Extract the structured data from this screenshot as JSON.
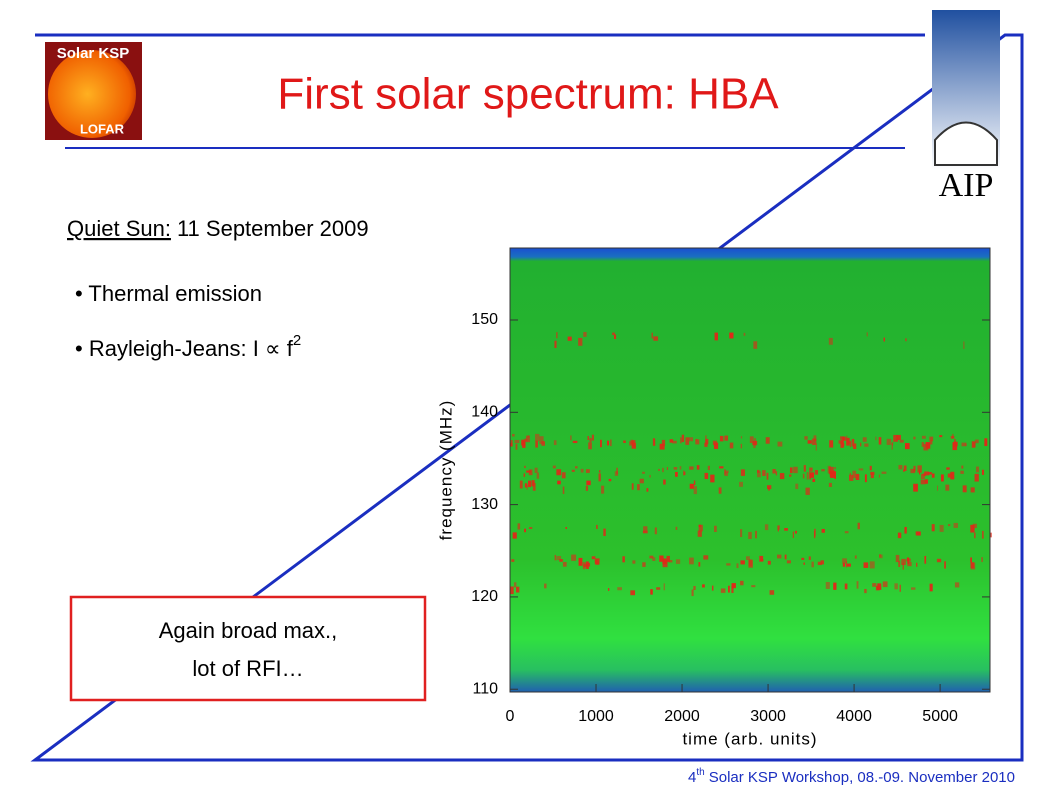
{
  "header": {
    "logo_top": "Solar KSP",
    "logo_bottom": "LOFAR",
    "title": "First solar spectrum: HBA",
    "institute": "AIP"
  },
  "subtitle": {
    "label": "Quiet Sun:",
    "date": "11 September 2009"
  },
  "bullets": [
    {
      "text": "Thermal emission"
    },
    {
      "text": "Rayleigh-Jeans: I ∝ f",
      "sup": "2"
    }
  ],
  "callout": [
    "Again broad max.,",
    "lot of RFI…"
  ],
  "footer": {
    "number": "4",
    "suffix": "th",
    "text": "Solar KSP Workshop, 08.-09. November 2010"
  },
  "chart_data": {
    "type": "heatmap",
    "xlabel": "time (arb. units)",
    "ylabel": "frequency (MHz)",
    "xlim": [
      0,
      5580
    ],
    "xticks": [
      0,
      1000,
      2000,
      3000,
      4000,
      5000
    ],
    "ylim": [
      109.7,
      157.8
    ],
    "yticks": [
      110,
      120,
      130,
      140,
      150
    ]
  }
}
